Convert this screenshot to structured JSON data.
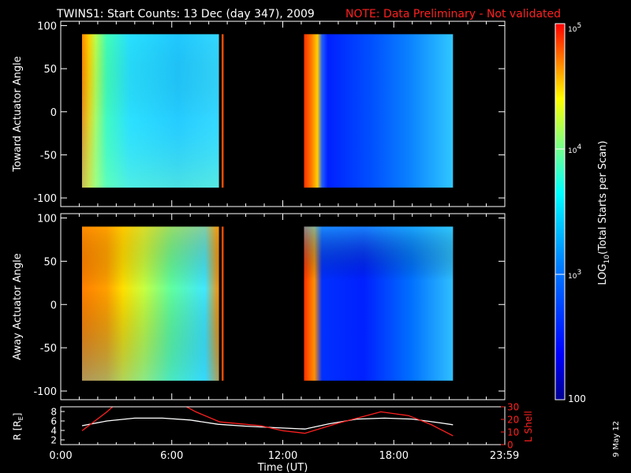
{
  "header": {
    "title": "TWINS1: Start Counts: 13 Dec (day 347), 2009",
    "note": "NOTE: Data Preliminary - Not validated"
  },
  "side_stamp": "9 May 12",
  "colors": {
    "note": "#ff2020",
    "r_line": "#ffffff",
    "l_line": "#ff2020"
  },
  "chart_data": [
    {
      "type": "heatmap",
      "panel": "toward",
      "ylabel": "Toward Actuator Angle",
      "ylim": [
        -110,
        105
      ],
      "yticks": [
        100,
        50,
        0,
        -50,
        -100
      ],
      "xlim": [
        0,
        24
      ],
      "segments": [
        {
          "x_start": 1.15,
          "x_end": 8.55,
          "y_range": [
            -88,
            90
          ]
        },
        {
          "x_start": 8.7,
          "x_end": 8.8,
          "y_range": [
            -88,
            90
          ]
        },
        {
          "x_start": 13.15,
          "x_end": 21.2,
          "y_range": [
            -88,
            90
          ]
        }
      ]
    },
    {
      "type": "heatmap",
      "panel": "away",
      "ylabel": "Away Actuator Angle",
      "ylim": [
        -110,
        105
      ],
      "yticks": [
        100,
        50,
        0,
        -50,
        -100
      ],
      "xlim": [
        0,
        24
      ],
      "segments": [
        {
          "x_start": 1.15,
          "x_end": 8.55,
          "y_range": [
            -88,
            90
          ]
        },
        {
          "x_start": 8.7,
          "x_end": 8.8,
          "y_range": [
            -88,
            90
          ]
        },
        {
          "x_start": 13.15,
          "x_end": 21.2,
          "y_range": [
            -88,
            90
          ]
        }
      ]
    },
    {
      "type": "line",
      "panel": "orbit",
      "xlabel": "Time (UT)",
      "xlim": [
        0,
        24
      ],
      "xticks": [
        0,
        6,
        12,
        18,
        23.983
      ],
      "xtick_labels": [
        "0:00",
        "6:00",
        "12:00",
        "18:00",
        "23:59"
      ],
      "left_axis": {
        "label": "R [R_E]",
        "label_main": "R [R",
        "label_sub": "E",
        "ylim": [
          1,
          9
        ],
        "yticks": [
          2,
          4,
          6,
          8
        ]
      },
      "right_axis": {
        "label": "L Shell",
        "ylim": [
          0,
          30
        ],
        "yticks": [
          0,
          10,
          20,
          30
        ]
      },
      "series": [
        {
          "name": "R [R_E]",
          "axis": "left",
          "color": "#ffffff",
          "x": [
            1.15,
            2.5,
            4,
            5.5,
            7,
            8.5,
            10,
            11.5,
            13.2,
            14.5,
            16,
            17.5,
            19,
            20.5,
            21.2
          ],
          "y": [
            5.0,
            6.0,
            6.6,
            6.6,
            6.2,
            5.3,
            4.9,
            4.6,
            4.3,
            5.4,
            6.4,
            6.6,
            6.4,
            5.6,
            5.2
          ]
        },
        {
          "name": "L Shell",
          "axis": "right",
          "color": "#ff2020",
          "x": [
            1.15,
            2.5,
            2.8
          ],
          "y": [
            11,
            26,
            30
          ]
        },
        {
          "name": "L Shell",
          "axis": "right",
          "color": "#ff2020",
          "x": [
            6.8,
            7.3,
            8.6,
            10.8,
            12.0,
            13.2,
            15.0,
            17.3,
            18.8,
            20.0,
            21.2
          ],
          "y": [
            30,
            26,
            18,
            15,
            11,
            9,
            17,
            26,
            23,
            16,
            7
          ]
        }
      ]
    }
  ],
  "colorbar": {
    "label_prefix": "LOG",
    "label_sub": "10",
    "label_suffix": "(Total Starts per Scan)",
    "range": [
      100,
      100000
    ],
    "ticks": [
      {
        "value": 100000,
        "base": "10",
        "exp": "5"
      },
      {
        "value": 10000,
        "base": "10",
        "exp": "4"
      },
      {
        "value": 1000,
        "base": "10",
        "exp": "3"
      },
      {
        "value": 100,
        "text": "100"
      }
    ]
  }
}
